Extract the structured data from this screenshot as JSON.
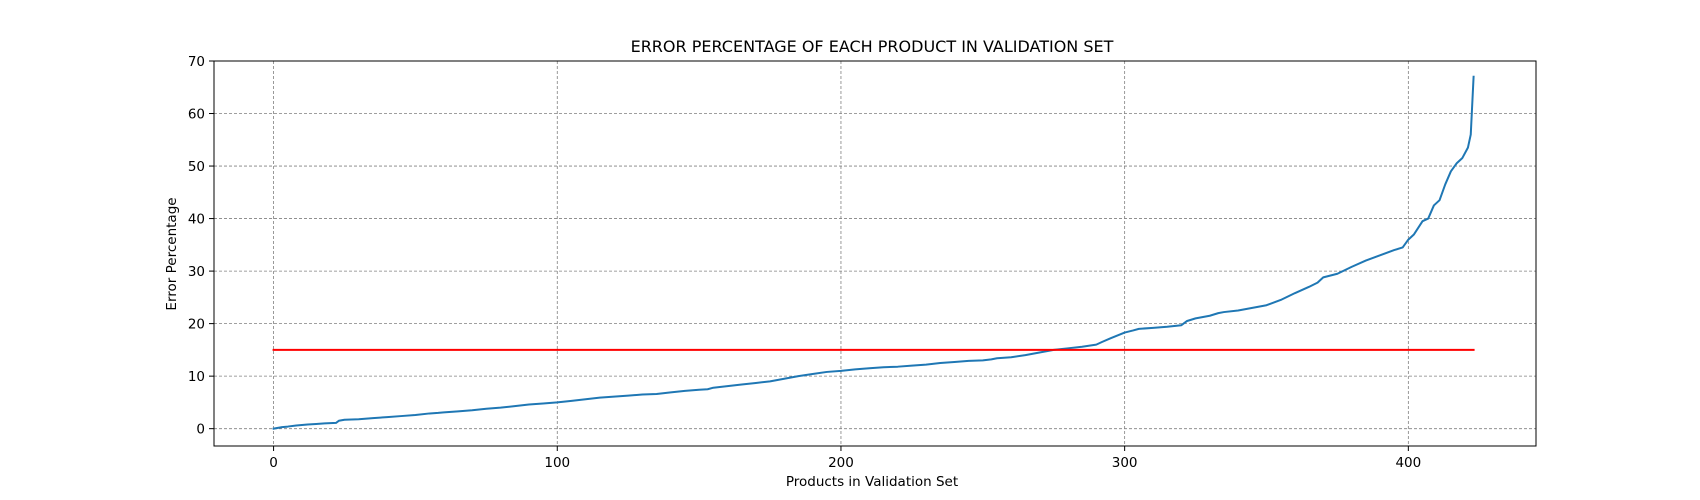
{
  "chart_data": {
    "type": "line",
    "title": "ERROR PERCENTAGE OF EACH PRODUCT IN VALIDATION SET",
    "xlabel": "Products in Validation Set",
    "ylabel": "Error Percentage",
    "xlim": [
      -21,
      445
    ],
    "ylim": [
      -3.3,
      70
    ],
    "xticks": [
      0,
      100,
      200,
      300,
      400
    ],
    "yticks": [
      0,
      10,
      20,
      30,
      40,
      50,
      60,
      70
    ],
    "grid": true,
    "series": [
      {
        "color": "#1f77b4",
        "x": [
          0,
          3,
          5,
          8,
          12,
          15,
          18,
          22,
          23,
          25,
          30,
          35,
          40,
          45,
          50,
          55,
          58,
          60,
          65,
          70,
          75,
          80,
          85,
          90,
          95,
          100,
          105,
          110,
          115,
          120,
          125,
          130,
          135,
          140,
          145,
          150,
          153,
          155,
          160,
          165,
          170,
          175,
          180,
          185,
          190,
          195,
          200,
          205,
          210,
          215,
          220,
          225,
          230,
          235,
          240,
          245,
          250,
          253,
          255,
          260,
          265,
          270,
          275,
          280,
          285,
          290,
          292,
          295,
          300,
          303,
          305,
          310,
          315,
          320,
          322,
          325,
          330,
          333,
          335,
          340,
          345,
          350,
          355,
          360,
          365,
          368,
          370,
          375,
          380,
          385,
          390,
          395,
          398,
          400,
          402,
          405,
          407,
          409,
          411,
          413,
          415,
          417,
          419,
          421,
          422,
          423
        ],
        "y": [
          0,
          0.3,
          0.4,
          0.6,
          0.8,
          0.9,
          1.0,
          1.1,
          1.5,
          1.7,
          1.8,
          2.0,
          2.2,
          2.4,
          2.6,
          2.9,
          3.0,
          3.1,
          3.3,
          3.5,
          3.8,
          4.0,
          4.3,
          4.6,
          4.8,
          5.0,
          5.3,
          5.6,
          5.9,
          6.1,
          6.3,
          6.5,
          6.6,
          6.9,
          7.2,
          7.4,
          7.5,
          7.8,
          8.1,
          8.4,
          8.7,
          9.0,
          9.5,
          10.0,
          10.4,
          10.8,
          11.0,
          11.3,
          11.5,
          11.7,
          11.8,
          12.0,
          12.2,
          12.5,
          12.7,
          12.9,
          13.0,
          13.2,
          13.4,
          13.6,
          14.0,
          14.5,
          15.0,
          15.3,
          15.6,
          16.0,
          16.5,
          17.2,
          18.3,
          18.7,
          19.0,
          19.2,
          19.4,
          19.7,
          20.5,
          21.0,
          21.5,
          22.0,
          22.2,
          22.5,
          23.0,
          23.5,
          24.5,
          25.8,
          27.0,
          27.8,
          28.8,
          29.5,
          30.8,
          32.0,
          33.0,
          34.0,
          34.5,
          36.0,
          37.0,
          39.5,
          40.0,
          42.5,
          43.5,
          46.5,
          49.0,
          50.5,
          51.5,
          53.5,
          56.0,
          67.0
        ]
      },
      {
        "color": "#ff0000",
        "x": [
          0,
          423
        ],
        "y": [
          15,
          15
        ]
      }
    ]
  }
}
